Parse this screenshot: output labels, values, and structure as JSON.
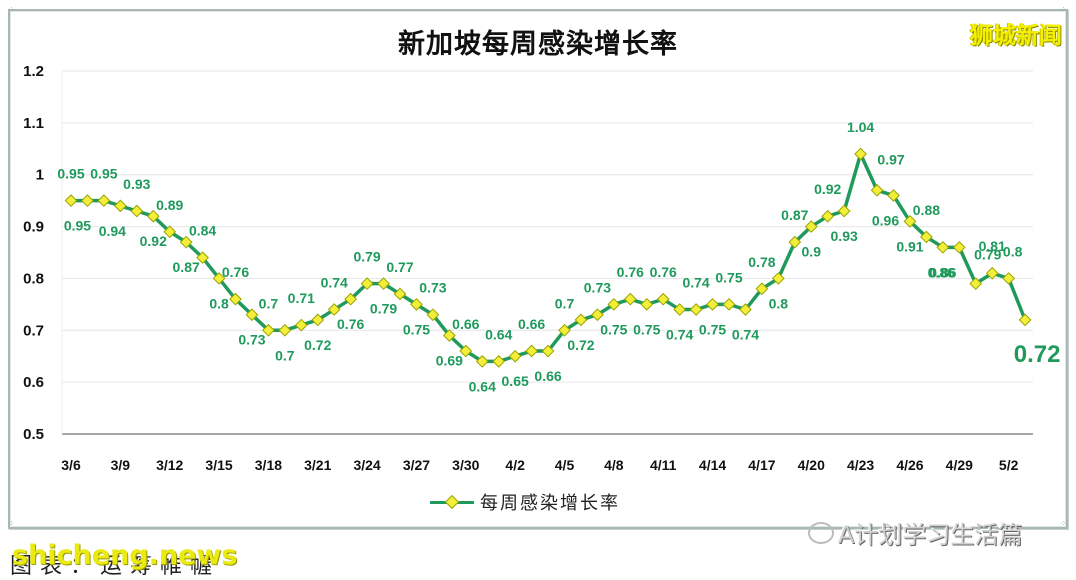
{
  "chart_title": "新加坡每周感染增长率",
  "brand": "狮城新闻",
  "legend": {
    "label": "每周感染增长率"
  },
  "watermarks": {
    "bottom_left_caption": "图表：运筹帷幄",
    "site": "shicheng.news",
    "account": "A计划学习生活篇"
  },
  "colors": {
    "line": "#1f9a5c",
    "marker_fill": "#f2ee3a",
    "marker_stroke": "#9aa400",
    "label": "#1f9a5c",
    "peak_label": "#d42a2a",
    "grid": "#e6e6e6",
    "brand": "#f4f000"
  },
  "chart_data": {
    "type": "line",
    "title": "新加坡每周感染增长率",
    "xlabel": "",
    "ylabel": "",
    "ylim": [
      0.5,
      1.2
    ],
    "yticks": [
      "0.5",
      "0.6",
      "0.7",
      "0.8",
      "0.9",
      "1",
      "1.1",
      "1.2"
    ],
    "xtick_labels": [
      "3/6",
      "3/9",
      "3/12",
      "3/15",
      "3/18",
      "3/21",
      "3/24",
      "3/27",
      "3/30",
      "4/2",
      "4/5",
      "4/8",
      "4/11",
      "4/14",
      "4/17",
      "4/20",
      "4/23",
      "4/26",
      "4/29",
      "5/2"
    ],
    "grid": true,
    "legend_position": "bottom",
    "x": [
      "3/6",
      "3/7",
      "3/8",
      "3/9",
      "3/10",
      "3/11",
      "3/12",
      "3/13",
      "3/14",
      "3/15",
      "3/16",
      "3/17",
      "3/18",
      "3/19",
      "3/20",
      "3/21",
      "3/22",
      "3/23",
      "3/24",
      "3/25",
      "3/26",
      "3/27",
      "3/28",
      "3/29",
      "3/30",
      "3/31",
      "4/1",
      "4/2",
      "4/3",
      "4/4",
      "4/5",
      "4/6",
      "4/7",
      "4/8",
      "4/9",
      "4/10",
      "4/11",
      "4/12",
      "4/13",
      "4/14",
      "4/15",
      "4/16",
      "4/17",
      "4/18",
      "4/19",
      "4/20",
      "4/21",
      "4/22",
      "4/23",
      "4/24",
      "4/25",
      "4/26",
      "4/27",
      "4/28",
      "4/29",
      "4/30",
      "5/1",
      "5/2",
      "5/3"
    ],
    "series": [
      {
        "name": "每周感染增长率",
        "values": [
          0.95,
          0.95,
          0.95,
          0.94,
          0.93,
          0.92,
          0.89,
          0.87,
          0.84,
          0.8,
          0.76,
          0.73,
          0.7,
          0.7,
          0.71,
          0.72,
          0.74,
          0.76,
          0.79,
          0.79,
          0.77,
          0.75,
          0.73,
          0.69,
          0.66,
          0.64,
          0.64,
          0.65,
          0.66,
          0.66,
          0.7,
          0.72,
          0.73,
          0.75,
          0.76,
          0.75,
          0.76,
          0.74,
          0.74,
          0.75,
          0.75,
          0.74,
          0.78,
          0.8,
          0.87,
          0.9,
          0.92,
          0.93,
          1.04,
          0.97,
          0.96,
          0.91,
          0.88,
          0.86,
          0.86,
          0.79,
          0.81,
          0.8,
          0.72
        ]
      }
    ],
    "annotations": [
      {
        "x": "4/23",
        "value": 1.04,
        "note": "peak, red label"
      },
      {
        "x": "5/3",
        "value": 0.72,
        "note": "latest, enlarged label"
      }
    ]
  }
}
